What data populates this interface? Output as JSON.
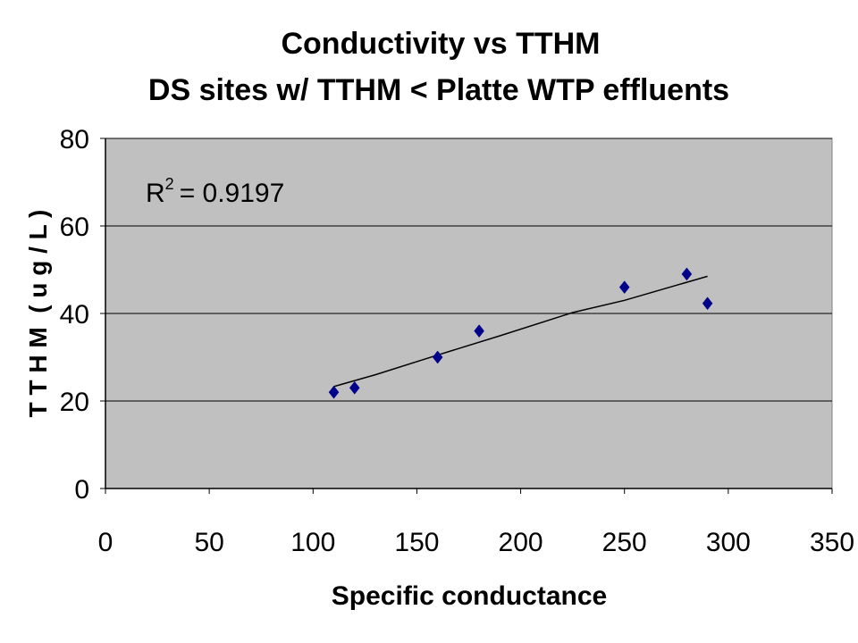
{
  "chart_data": {
    "type": "scatter",
    "title": "Conductivity vs TTHM",
    "subtitle": "DS sites w/ TTHM < Platte WTP effluents",
    "xlabel": "Specific conductance",
    "ylabel": "T T H M  ( u g / L )",
    "xlim": [
      0,
      350
    ],
    "ylim": [
      0,
      80
    ],
    "x_ticks": [
      "0",
      "50",
      "100",
      "150",
      "200",
      "250",
      "300",
      "350"
    ],
    "y_ticks": [
      "0",
      "20",
      "40",
      "60",
      "80"
    ],
    "grid": "horizontal",
    "legend": "none",
    "annotation": {
      "r2_prefix": "R",
      "r2_power": "2",
      "r2_value": "= 0.9197"
    },
    "series": [
      {
        "marker": "diamond",
        "color": "#00008B",
        "x": [
          110,
          120,
          160,
          180,
          250,
          280,
          290
        ],
        "y": [
          22,
          23,
          30,
          36,
          46,
          49,
          42.3
        ]
      }
    ],
    "trendline": {
      "color": "#000000",
      "x": [
        110,
        130,
        160,
        190,
        225,
        250,
        290
      ],
      "y": [
        23.3,
        26.0,
        30.5,
        34.9,
        40.2,
        43.0,
        48.5
      ]
    },
    "plot_bg": "#C0C0C0"
  }
}
